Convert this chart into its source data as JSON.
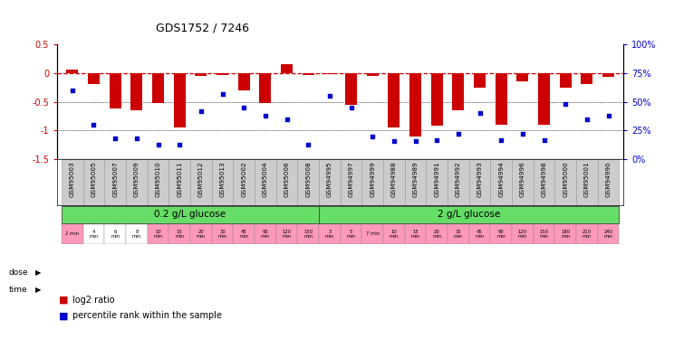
{
  "title": "GDS1752 / 7246",
  "samples": [
    "GSM95003",
    "GSM95005",
    "GSM95007",
    "GSM95009",
    "GSM95010",
    "GSM95011",
    "GSM95012",
    "GSM95013",
    "GSM95002",
    "GSM95004",
    "GSM95006",
    "GSM95008",
    "GSM94995",
    "GSM94997",
    "GSM94999",
    "GSM94988",
    "GSM94989",
    "GSM94991",
    "GSM94992",
    "GSM94993",
    "GSM94994",
    "GSM94996",
    "GSM94998",
    "GSM95000",
    "GSM95001",
    "GSM94990"
  ],
  "log2_ratio": [
    0.05,
    -0.2,
    -0.62,
    -0.65,
    -0.52,
    -0.95,
    -0.05,
    -0.03,
    -0.3,
    -0.52,
    0.15,
    -0.04,
    -0.02,
    -0.55,
    -0.05,
    -0.95,
    -1.1,
    -0.92,
    -0.65,
    -0.25,
    -0.9,
    -0.15,
    -0.9,
    -0.25,
    -0.2,
    -0.07
  ],
  "percentile_rank": [
    60,
    30,
    18,
    18,
    13,
    13,
    42,
    57,
    45,
    38,
    35,
    13,
    55,
    45,
    20,
    16,
    16,
    17,
    22,
    40,
    17,
    22,
    17,
    48,
    35,
    38
  ],
  "time_labels": [
    "2 min",
    "4\nmin",
    "6\nmin",
    "8\nmin",
    "10\nmin",
    "15\nmin",
    "20\nmin",
    "30\nmin",
    "45\nmin",
    "90\nmin",
    "120\nmin",
    "150\nmin",
    "3\nmin",
    "5\nmin",
    "7 min",
    "10\nmin",
    "15\nmin",
    "20\nmin",
    "30\nmin",
    "45\nmin",
    "90\nmin",
    "120\nmin",
    "150\nmin",
    "180\nmin",
    "210\nmin",
    "240\nmin"
  ],
  "time_colors": [
    "#FF99BB",
    "#FFFFFF",
    "#FFFFFF",
    "#FFFFFF",
    "#FF99BB",
    "#FF99BB",
    "#FF99BB",
    "#FF99BB",
    "#FF99BB",
    "#FF99BB",
    "#FF99BB",
    "#FF99BB",
    "#FF99BB",
    "#FF99BB",
    "#FF99BB",
    "#FF99BB",
    "#FF99BB",
    "#FF99BB",
    "#FF99BB",
    "#FF99BB",
    "#FF99BB",
    "#FF99BB",
    "#FF99BB",
    "#FF99BB",
    "#FF99BB",
    "#FF99BB"
  ],
  "bar_color": "#CC0000",
  "scatter_color": "#0000CC",
  "dose_color": "#66DD66",
  "gsm_bg_color": "#CCCCCC",
  "ylim_left": [
    -1.5,
    0.5
  ],
  "ylim_right": [
    0,
    100
  ],
  "yticks_left": [
    -1.5,
    -1.0,
    -0.5,
    0.0,
    0.5
  ],
  "ytick_labels_left": [
    "-1.5",
    "-1",
    "-0.5",
    "0",
    "0.5"
  ],
  "yticks_right": [
    0,
    25,
    50,
    75,
    100
  ],
  "ytick_labels_right": [
    "0%",
    "25%",
    "50%",
    "75%",
    "100%"
  ]
}
